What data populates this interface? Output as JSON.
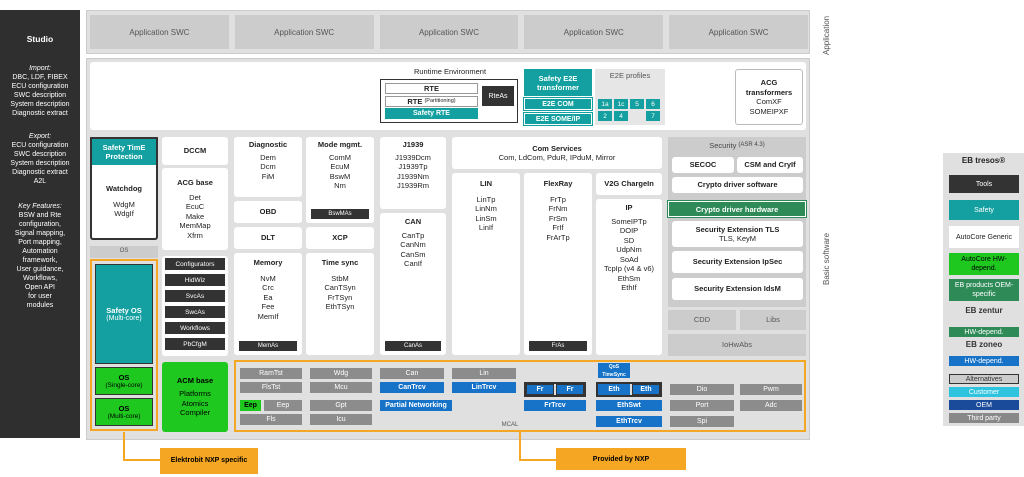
{
  "studio": {
    "title": "Studio",
    "import_h": "Import:",
    "import_t": [
      "DBC, LDF, FIBEX",
      "ECU configuration",
      "SWC description",
      "System description",
      "Diagnostic extract"
    ],
    "export_h": "Export:",
    "export_t": [
      "ECU configuration",
      "SWC description",
      "System description",
      "Diagnostic extract",
      "A2L"
    ],
    "key_h": "Key Features:",
    "key_t": [
      "BSW and Rte",
      "configuration,",
      "Signal mapping,",
      "Port mapping,",
      "Automation",
      "framework,",
      "User guidance,",
      "Workflows,",
      "Open API",
      "for user",
      "modules"
    ]
  },
  "app": {
    "swc": [
      "Application SWC",
      "Application SWC",
      "Application SWC",
      "Application SWC",
      "Application SWC"
    ],
    "label": "Application"
  },
  "rte": {
    "env": "Runtime Environment",
    "rte": "RTE",
    "rte_part": "RTE",
    "rte_part_small": "(Partitioning)",
    "safety_rte": "Safety RTE",
    "rteas": "RteAs",
    "e2e_tr": "Safety E2E transformer",
    "e2e_com": "E2E COM",
    "e2e_someip": "E2E SOME/IP",
    "e2e_profiles": "E2E profiles",
    "profiles": [
      "1a",
      "1c",
      "5",
      "6",
      "2",
      "4",
      "7"
    ],
    "acg": "ACG transformers",
    "acg_items": [
      "ComXF",
      "SOMEIPXF"
    ]
  },
  "bsw": {
    "label": "Basic software",
    "safety_time": "Safety TimE Protection",
    "watchdog": "Watchdog",
    "wd_items": [
      "WdgM",
      "WdgIf"
    ],
    "os": "OS",
    "safety_os": "Safety OS",
    "safety_os_sub": "(Multi-core)",
    "os1": "OS",
    "os1_sub": "(Single-core)",
    "os2": "OS",
    "os2_sub": "(Multi-core)",
    "dccm": "DCCM",
    "acg_base": "ACG base",
    "acg_base_items": [
      "Det",
      "EcuC",
      "Make",
      "MemMap",
      "Xfrm"
    ],
    "mini": [
      "Configurators",
      "HidWiz",
      "SvcAs",
      "SwcAs",
      "Workflows",
      "PbCfgM"
    ],
    "acm": "ACM base",
    "acm_items": [
      "Platforms",
      "Atomics",
      "Compiler"
    ],
    "diag": "Diagnostic",
    "diag_items": [
      "Dem",
      "Dcm",
      "FiM"
    ],
    "obd": "OBD",
    "dlt": "DLT",
    "memory": "Memory",
    "mem_items": [
      "NvM",
      "Crc",
      "Ea",
      "Fee",
      "MemIf"
    ],
    "memas": "MemAs",
    "mode": "Mode mgmt.",
    "mode_items": [
      "ComM",
      "EcuM",
      "BswM",
      "Nm"
    ],
    "bswmas": "BswMAs",
    "xcp": "XCP",
    "timesync": "Time sync",
    "ts_items": [
      "StbM",
      "CanTSyn",
      "FrTSyn",
      "EthTSyn"
    ],
    "j1939": "J1939",
    "j_items": [
      "J1939Dcm",
      "J1939Tp",
      "J1939Nm",
      "J1939Rm"
    ],
    "can": "CAN",
    "can_items": [
      "CanTp",
      "CanNm",
      "CanSm",
      "CanIf"
    ],
    "canas": "CanAs",
    "com": "Com Services",
    "com_items": "Com, LdCom, PduR, IPduM, Mirror",
    "lin": "LIN",
    "lin_items": [
      "LinTp",
      "LinNm",
      "LinSm",
      "LinIf"
    ],
    "flexray": "FlexRay",
    "fr_items": [
      "FrTp",
      "FrNm",
      "FrSm",
      "FrIf",
      "FrArTp"
    ],
    "fras": "FrAs",
    "v2g": "V2G ChargeIn",
    "ip": "IP",
    "ip_items": [
      "SomeIPTp",
      "DOIP",
      "SD",
      "UdpNm",
      "SoAd",
      "TcpIp (v4 & v6)",
      "EthSm",
      "EthIf"
    ],
    "sec": "Security",
    "sec_small": "(ASR 4.3)",
    "secoc": "SECOC",
    "csm": "CSM and CryIf",
    "crypto_sw": "Crypto driver software",
    "crypto_hw": "Crypto driver hardware",
    "tls": "Security Extension TLS",
    "tls_sub": "TLS, KeyM",
    "ipsec": "Security Extension IpSec",
    "idsm": "Security Extension IdsM",
    "cdd": "CDD",
    "libs": "Libs",
    "iohw": "IoHwAbs"
  },
  "mcal": {
    "label": "MCAL",
    "cells": [
      "RamTst",
      "Wdg",
      "Can",
      "Lin",
      "FlsTst",
      "Mcu",
      "CanTrcv",
      "LinTrcv",
      "Eep",
      "Eep",
      "Gpt",
      "Partial Networking",
      "Fls",
      "Icu",
      "Fr",
      "Fr",
      "FrTrcv",
      "QoS",
      "TimeSync",
      "Eth",
      "Eth",
      "EthSwt",
      "EthTrcv",
      "Dio",
      "Pwm",
      "Port",
      "Adc",
      "Spi"
    ]
  },
  "callouts": {
    "nxp_specific": "Elektrobit NXP specific",
    "provided": "Provided by NXP"
  },
  "legend": {
    "title": "EB tresos®",
    "tools": "Tools",
    "safety": "Safety",
    "autocore": "AutoCore Generic",
    "hw": "AutoCore HW-depend.",
    "products": "EB products OEM-specific",
    "zentur": "EB zentur",
    "zentur_hw": "HW-depend.",
    "zoneo": "EB zoneo",
    "zoneo_hw": "HW-depend.",
    "alternatives": "Alternatives",
    "customer": "Customer",
    "oem": "OEM",
    "third": "Third party"
  }
}
